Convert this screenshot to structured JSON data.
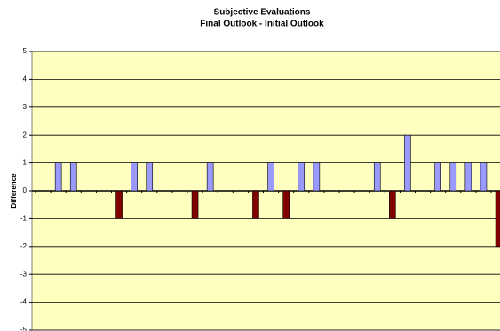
{
  "chart_data": {
    "type": "bar",
    "title": "Subjective Evaluations",
    "subtitle": "Final Outlook - Initial Outlook",
    "y_label": "Difference",
    "categories": [
      null,
      null,
      null,
      null,
      null,
      null,
      null,
      null,
      null,
      null,
      null,
      null,
      null,
      null,
      null,
      null,
      null,
      null,
      null,
      null,
      null,
      null,
      null,
      null,
      null,
      null,
      null,
      null,
      null,
      null,
      null
    ],
    "values": [
      0,
      1,
      1,
      0,
      0,
      -1,
      1,
      1,
      0,
      0,
      -1,
      1,
      0,
      0,
      -1,
      1,
      -1,
      1,
      1,
      0,
      0,
      0,
      1,
      -1,
      2,
      0,
      1,
      1,
      1,
      1,
      -2
    ],
    "color": "#9999ff",
    "negative_color": "#800000",
    "plot_background": "#ffffc0",
    "ylim": [
      -5,
      5
    ],
    "yticks": [
      -5,
      -4,
      -3,
      -2,
      -1,
      0,
      1,
      2,
      3,
      4,
      5
    ],
    "grid": true
  }
}
